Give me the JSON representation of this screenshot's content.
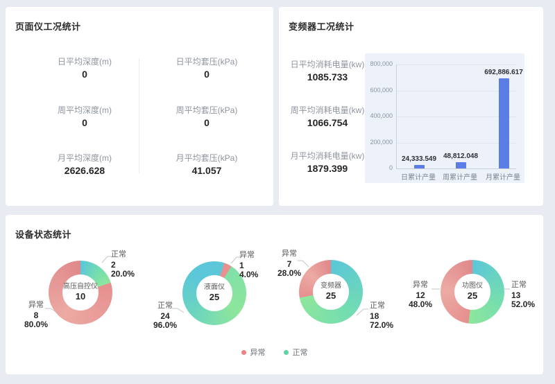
{
  "theme": {
    "page_bg": "#e9ebf2",
    "panel_bg": "#ffffff",
    "title_color": "#2b2b2b",
    "metric_label_color": "#8f959e",
    "metric_value_color": "#262626",
    "bar_color": "#5a7de6",
    "chart_bg": "#edf1f9",
    "normal_gradient": [
      "#5bc7d8",
      "#74ddb0",
      "#8ee69c"
    ],
    "abnormal_gradient": [
      "#e69090",
      "#ecaaa3",
      "#e0888b"
    ],
    "legend_abnormal_dot": "#e88484",
    "legend_normal_dot": "#5ed3a6"
  },
  "gauge_panel": {
    "title": "页面仪工况统计",
    "metrics": [
      {
        "label": "日平均深度(m)",
        "value": "0"
      },
      {
        "label": "日平均套压(kPa)",
        "value": "0"
      },
      {
        "label": "周平均深度(m)",
        "value": "0"
      },
      {
        "label": "周平均套压(kPa)",
        "value": "0"
      },
      {
        "label": "月平均深度(m)",
        "value": "2626.628"
      },
      {
        "label": "月平均套压(kPa)",
        "value": "41.057"
      }
    ]
  },
  "inverter_panel": {
    "title": "变频器工况统计",
    "metrics": [
      {
        "label": "日平均消耗电量(kw)",
        "value": "1085.733"
      },
      {
        "label": "周平均消耗电量(kw)",
        "value": "1066.754"
      },
      {
        "label": "月平均消耗电量(kw)",
        "value": "1879.399"
      }
    ]
  },
  "device_panel": {
    "title": "设备状态统计",
    "legend": [
      {
        "label": "异常",
        "color": "#e88484"
      },
      {
        "label": "正常",
        "color": "#5ed3a6"
      }
    ]
  },
  "chart_data": [
    {
      "type": "bar",
      "title": "变频器工况统计",
      "categories": [
        "日累计产量",
        "周累计产量",
        "月累计产量"
      ],
      "values": [
        24333.549,
        48812.048,
        692886.617
      ],
      "value_labels": [
        "24,333.549",
        "48,812.048",
        "692,886.617"
      ],
      "xlabel": "",
      "ylabel": "",
      "ylim": [
        0,
        800000
      ],
      "yticks": [
        0,
        200000,
        400000,
        600000,
        800000
      ],
      "ytick_labels": [
        "0",
        "200,000",
        "400,000",
        "600,000",
        "800,000"
      ],
      "grid": true,
      "legend_position": "none"
    },
    {
      "type": "pie",
      "name": "高压自控仪",
      "total": 10,
      "normal": {
        "label": "正常",
        "count": 2,
        "pct": "20.0%"
      },
      "abnormal": {
        "label": "异常",
        "count": 8,
        "pct": "80.0%"
      }
    },
    {
      "type": "pie",
      "name": "液面仪",
      "total": 25,
      "normal": {
        "label": "正常",
        "count": 24,
        "pct": "96.0%"
      },
      "abnormal": {
        "label": "异常",
        "count": 1,
        "pct": "4.0%"
      },
      "display": {
        "abnormal_arc_deg": [
          18,
          32.4
        ]
      }
    },
    {
      "type": "pie",
      "name": "变频器",
      "total": 25,
      "normal": {
        "label": "正常",
        "count": 18,
        "pct": "72.0%"
      },
      "abnormal": {
        "label": "异常",
        "count": 7,
        "pct": "28.0%"
      }
    },
    {
      "type": "pie",
      "name": "功图仪",
      "total": 25,
      "normal": {
        "label": "正常",
        "count": 13,
        "pct": "52.0%"
      },
      "abnormal": {
        "label": "异常",
        "count": 12,
        "pct": "48.0%"
      }
    }
  ]
}
